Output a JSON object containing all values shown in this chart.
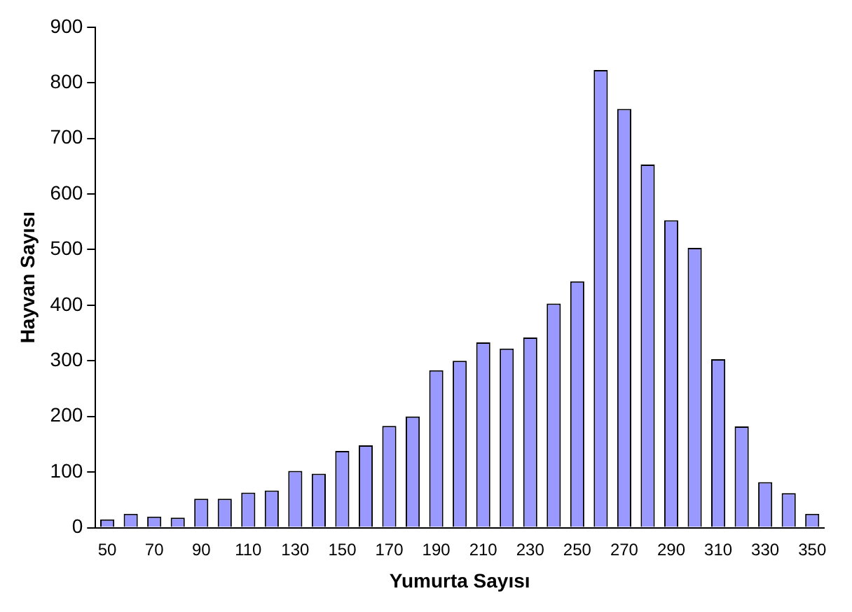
{
  "chart_data": {
    "type": "bar",
    "xlabel": "Yumurta Sayısı",
    "ylabel": "Hayvan Sayısı",
    "categories": [
      "50",
      null,
      "70",
      null,
      "90",
      null,
      "110",
      null,
      "130",
      null,
      "150",
      null,
      "170",
      null,
      "190",
      null,
      "210",
      null,
      "230",
      null,
      "250",
      null,
      "270",
      null,
      "290",
      null,
      "310",
      null,
      "330",
      null,
      "350"
    ],
    "values": [
      15,
      25,
      20,
      18,
      52,
      52,
      63,
      67,
      102,
      97,
      138,
      148,
      183,
      200,
      283,
      300,
      333,
      322,
      342,
      403,
      443,
      823,
      753,
      653,
      553,
      503,
      303,
      182,
      82,
      62,
      25
    ],
    "color": "#9999ff",
    "ylim": [
      0,
      900
    ],
    "yticks": [
      0,
      100,
      200,
      300,
      400,
      500,
      600,
      700,
      800,
      900
    ],
    "grid": false,
    "legend": false
  }
}
